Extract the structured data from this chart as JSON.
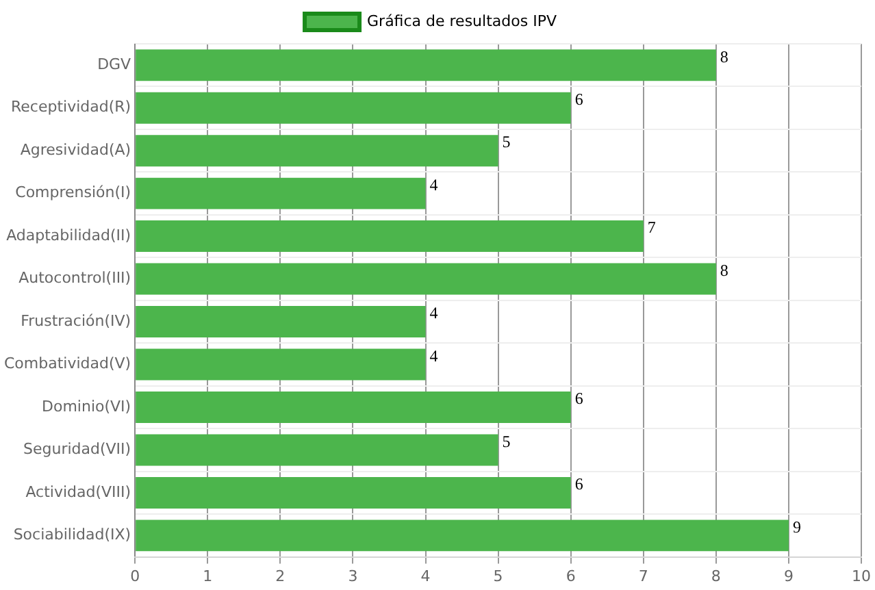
{
  "chart_data": {
    "type": "bar",
    "orientation": "horizontal",
    "categories": [
      "DGV",
      "Receptividad(R)",
      "Agresividad(A)",
      "Comprensión(I)",
      "Adaptabilidad(II)",
      "Autocontrol(III)",
      "Frustración(IV)",
      "Combatividad(V)",
      "Dominio(VI)",
      "Seguridad(VII)",
      "Actividad(VIII)",
      "Sociabilidad(IX)"
    ],
    "series": [
      {
        "name": "Gráfica de resultados IPV",
        "color": "#4cb54c",
        "values": [
          8,
          6,
          5,
          4,
          7,
          8,
          4,
          4,
          6,
          5,
          6,
          9
        ]
      }
    ],
    "xlim": [
      0,
      10
    ],
    "xticks": [
      0,
      1,
      2,
      3,
      4,
      5,
      6,
      7,
      8,
      9,
      10
    ],
    "grid": true,
    "legend": "top",
    "data_labels": true
  }
}
